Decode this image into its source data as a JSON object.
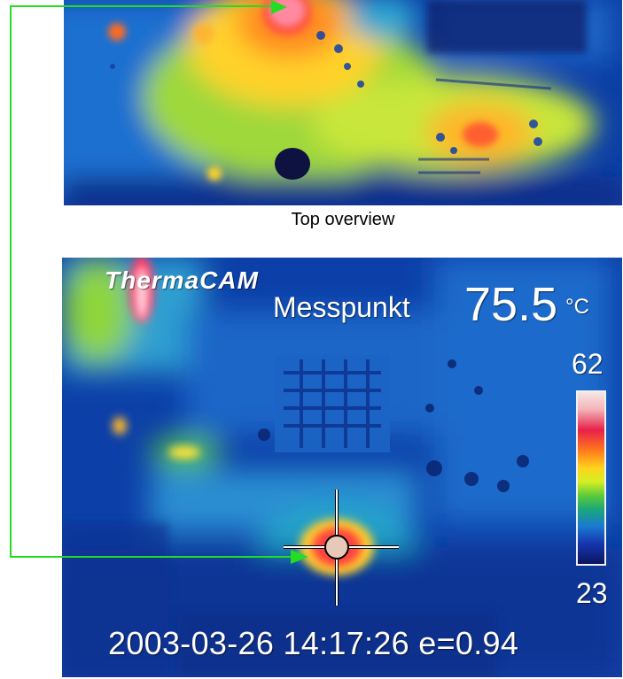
{
  "top_panel": {
    "caption": "Top overview"
  },
  "main_panel": {
    "brand": "ThermaCAM",
    "measurement_label": "Messpunkt",
    "measurement_value": "75.5",
    "measurement_unit": "°C",
    "scale_max": "62",
    "scale_min": "23",
    "timestamp": "2003-03-26 14:17:26 e=0.94"
  },
  "colors": {
    "arrow": "#22dd22",
    "scale_top": "#f5e6e4",
    "scale_bottom": "#0a1560"
  }
}
